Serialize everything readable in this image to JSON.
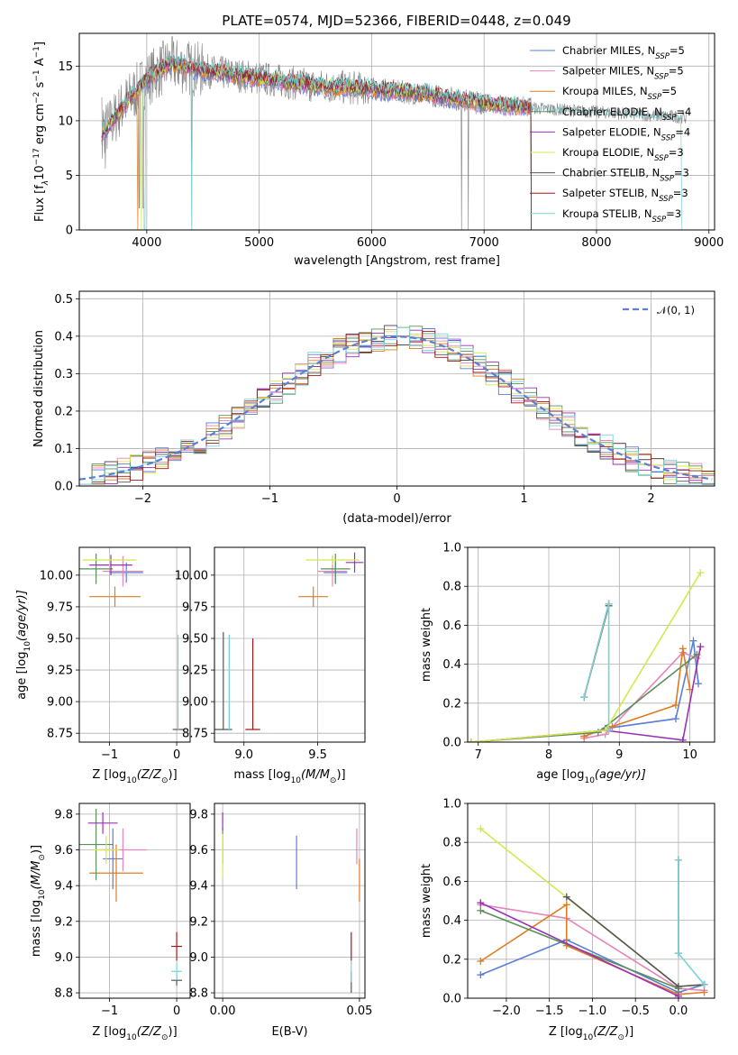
{
  "figure_title": "PLATE=0574, MJD=52366, FIBERID=0448, z=0.049",
  "models": [
    {
      "name": "Chabrier MILES, N",
      "sub": "SSP",
      "n": "=5",
      "color": "#5b7fd6"
    },
    {
      "name": "Salpeter MILES, N",
      "sub": "SSP",
      "n": "=5",
      "color": "#e884b8"
    },
    {
      "name": "Kroupa MILES, N",
      "sub": "SSP",
      "n": "=5",
      "color": "#e07b1f"
    },
    {
      "name": "Chabrier ELODIE, N",
      "sub": "SSP",
      "n": "=4",
      "color": "#5a8f5a"
    },
    {
      "name": "Salpeter ELODIE, N",
      "sub": "SSP",
      "n": "=4",
      "color": "#9b2fb8"
    },
    {
      "name": "Kroupa ELODIE, N",
      "sub": "SSP",
      "n": "=3",
      "color": "#d4e84a"
    },
    {
      "name": "Chabrier STELIB, N",
      "sub": "SSP",
      "n": "=3",
      "color": "#555555"
    },
    {
      "name": "Salpeter STELIB, N",
      "sub": "SSP",
      "n": "=3",
      "color": "#a01818"
    },
    {
      "name": "Kroupa STELIB, N",
      "sub": "SSP",
      "n": "=3",
      "color": "#7ad4d4"
    }
  ],
  "chart_data": [
    {
      "type": "line",
      "panel": "spectrum",
      "xlabel": "wavelength [Angstrom, rest frame]",
      "ylabel_main": "Flux [f",
      "ylabel_sub": "λ",
      "ylabel_rest": "10",
      "ylabel_exp1": "−17",
      "ylabel_mid": " erg cm",
      "ylabel_exp2": "−2",
      "ylabel_s": " s",
      "ylabel_exp3": "−1",
      "ylabel_end": " A",
      "ylabel_exp4": "−1",
      "ylabel_close": "]",
      "xlim": [
        3400,
        9050
      ],
      "ylim": [
        0,
        18
      ],
      "xticks": [
        4000,
        5000,
        6000,
        7000,
        8000,
        9000
      ],
      "yticks": [
        0,
        5,
        10,
        15
      ],
      "observed_color": "#808080",
      "observed_range": [
        3600,
        8800
      ],
      "model_range": [
        3600,
        7420
      ],
      "continuum_profile": {
        "x": [
          3600,
          3700,
          3800,
          4000,
          4200,
          4500,
          5000,
          5500,
          6000,
          6500,
          7000,
          7400,
          8000,
          8800
        ],
        "y": [
          8.8,
          10.0,
          11.5,
          13.8,
          15.2,
          14.6,
          13.9,
          13.2,
          12.9,
          12.4,
          11.6,
          11.2,
          10.8,
          10.3
        ]
      }
    },
    {
      "type": "histogram",
      "panel": "residuals",
      "xlabel": "(data-model)/error",
      "ylabel": "Normed distribution",
      "xlim": [
        -2.5,
        2.5
      ],
      "ylim": [
        0,
        0.52
      ],
      "xticks": [
        -2,
        -1,
        0,
        1,
        2
      ],
      "yticks": [
        0.0,
        0.1,
        0.2,
        0.3,
        0.4,
        0.5
      ],
      "bin_width": 0.1,
      "reference": {
        "label": "𝒩(0, 1)",
        "color": "#5b7fd6"
      }
    },
    {
      "type": "scatter",
      "panel": "age-vs-Z",
      "xlabel": "Z [log",
      "xlabel_sub": "10",
      "xlabel_rest": "(Z/Z",
      "xlabel_sun": "⊙",
      "xlabel_close": ")]",
      "ylabel": "age  [log",
      "ylabel_sub": "10",
      "ylabel_rest": "(age/yr)]",
      "xlim": [
        -1.45,
        0.2
      ],
      "ylim": [
        8.68,
        10.22
      ],
      "xticks": [
        -1,
        0
      ],
      "yticks": [
        8.75,
        9.0,
        9.25,
        9.5,
        9.75,
        10.0
      ],
      "points": [
        {
          "m": 0,
          "x": -0.75,
          "y": 10.02,
          "xerr": 0.25,
          "yerr": 0.08
        },
        {
          "m": 1,
          "x": -0.8,
          "y": 10.03,
          "xerr": 0.3,
          "yerr": 0.12
        },
        {
          "m": 2,
          "x": -0.92,
          "y": 9.83,
          "xerr": 0.38,
          "yerr": 0.08
        },
        {
          "m": 3,
          "x": -1.2,
          "y": 10.05,
          "xerr": 0.25,
          "yerr": 0.12
        },
        {
          "m": 4,
          "x": -0.98,
          "y": 10.08,
          "xerr": 0.32,
          "yerr": 0.08
        },
        {
          "m": 5,
          "x": -1.0,
          "y": 10.12,
          "xerr": 0.4,
          "yerr": 0.05
        },
        {
          "m": 6,
          "x": 0.02,
          "y": 8.78,
          "xerr": 0.08,
          "yerr": 0.0
        },
        {
          "m": 7,
          "x": 0.02,
          "y": 9.55,
          "xerr": 0.0,
          "yerr": 0.0
        },
        {
          "m": 8,
          "x": 0.02,
          "y": 9.15,
          "xerr": 0.0,
          "yerr": 0.38
        }
      ]
    },
    {
      "type": "scatter",
      "panel": "age-vs-mass",
      "xlabel": "mass [log",
      "xlabel_sub": "10",
      "xlabel_rest": "(M/M",
      "xlabel_sun": "⊙",
      "xlabel_close": ")]",
      "xlim": [
        8.8,
        9.82
      ],
      "ylim": [
        8.68,
        10.22
      ],
      "xticks": [
        9.0,
        9.5
      ],
      "yticks": [
        8.75,
        9.0,
        9.25,
        9.5,
        9.75,
        10.0
      ],
      "points": [
        {
          "m": 0,
          "x": 9.62,
          "y": 10.02,
          "xerr": 0.08,
          "yerr": 0.08
        },
        {
          "m": 1,
          "x": 9.6,
          "y": 10.03,
          "xerr": 0.1,
          "yerr": 0.12
        },
        {
          "m": 2,
          "x": 9.47,
          "y": 9.83,
          "xerr": 0.1,
          "yerr": 0.08
        },
        {
          "m": 3,
          "x": 9.62,
          "y": 10.05,
          "xerr": 0.1,
          "yerr": 0.12
        },
        {
          "m": 4,
          "x": 9.75,
          "y": 10.1,
          "xerr": 0.06,
          "yerr": 0.08
        },
        {
          "m": 5,
          "x": 9.6,
          "y": 10.12,
          "xerr": 0.18,
          "yerr": 0.04
        },
        {
          "m": 6,
          "x": 8.86,
          "y": 8.78,
          "xerr": 0.06,
          "yerr": 0.0
        },
        {
          "m": 7,
          "x": 9.06,
          "y": 8.78,
          "xerr": 0.05,
          "yerr": 0.0
        },
        {
          "m": 8,
          "x": 8.9,
          "y": 9.15,
          "xerr": 0.0,
          "yerr": 0.38
        }
      ],
      "stelib_vbars": [
        {
          "m": 6,
          "x": 8.86,
          "y0": 8.78,
          "y1": 9.55
        },
        {
          "m": 7,
          "x": 9.06,
          "y0": 8.78,
          "y1": 9.5
        },
        {
          "m": 8,
          "x": 8.9,
          "y0": 8.78,
          "y1": 9.52
        }
      ]
    },
    {
      "type": "line",
      "panel": "mass-weight-vs-age",
      "xlabel": "age  [log",
      "xlabel_sub": "10",
      "xlabel_rest": "(age/yr)]",
      "ylabel": "mass weight",
      "xlim": [
        6.85,
        10.35
      ],
      "ylim": [
        0,
        1.0
      ],
      "xticks": [
        7,
        8,
        9,
        10
      ],
      "yticks": [
        0.0,
        0.2,
        0.4,
        0.6,
        0.8,
        1.0
      ],
      "series": [
        {
          "m": 0,
          "x": [
            8.5,
            8.8,
            9.8,
            10.05,
            10.12
          ],
          "y": [
            0.03,
            0.07,
            0.12,
            0.52,
            0.3
          ]
        },
        {
          "m": 1,
          "x": [
            8.5,
            8.8,
            9.9,
            10.1
          ],
          "y": [
            0.02,
            0.04,
            0.46,
            0.43
          ]
        },
        {
          "m": 2,
          "x": [
            8.5,
            8.9,
            9.8,
            9.9,
            10.0
          ],
          "y": [
            0.03,
            0.08,
            0.19,
            0.48,
            0.27
          ]
        },
        {
          "m": 3,
          "x": [
            6.9,
            8.7,
            10.1
          ],
          "y": [
            0.0,
            0.05,
            0.45
          ]
        },
        {
          "m": 4,
          "x": [
            6.9,
            8.8,
            9.9,
            10.15
          ],
          "y": [
            0.0,
            0.06,
            0.01,
            0.49
          ]
        },
        {
          "m": 5,
          "x": [
            6.9,
            8.8,
            10.15
          ],
          "y": [
            0.0,
            0.06,
            0.87
          ]
        },
        {
          "m": 6,
          "x": [
            8.5,
            8.85
          ],
          "y": [
            0.23,
            0.7
          ]
        },
        {
          "m": 7,
          "x": [
            8.5,
            8.85
          ],
          "y": [
            0.23,
            0.71
          ]
        },
        {
          "m": 8,
          "x": [
            8.5,
            8.85,
            8.85
          ],
          "y": [
            0.23,
            0.71,
            0.06
          ]
        }
      ]
    },
    {
      "type": "scatter",
      "panel": "mass-vs-Z",
      "xlabel": "Z [log",
      "xlabel_sub": "10",
      "xlabel_rest": "(Z/Z",
      "xlabel_sun": "⊙",
      "xlabel_close": ")]",
      "ylabel": "mass [log",
      "ylabel_sub": "10",
      "ylabel_rest": "(M/M",
      "ylabel_sun": "⊙",
      "ylabel_close": ")]",
      "xlim": [
        -1.45,
        0.2
      ],
      "ylim": [
        8.77,
        9.86
      ],
      "xticks": [
        -1,
        0
      ],
      "yticks": [
        8.8,
        9.0,
        9.2,
        9.4,
        9.6,
        9.8
      ],
      "points": [
        {
          "m": 0,
          "x": -0.95,
          "y": 9.55,
          "xerr": 0.15,
          "yerr": 0.17
        },
        {
          "m": 1,
          "x": -0.8,
          "y": 9.6,
          "xerr": 0.35,
          "yerr": 0.12
        },
        {
          "m": 2,
          "x": -0.9,
          "y": 9.47,
          "xerr": 0.4,
          "yerr": 0.16
        },
        {
          "m": 3,
          "x": -1.2,
          "y": 9.63,
          "xerr": 0.25,
          "yerr": 0.2
        },
        {
          "m": 4,
          "x": -1.1,
          "y": 9.75,
          "xerr": 0.22,
          "yerr": 0.06
        },
        {
          "m": 5,
          "x": -1.05,
          "y": 9.6,
          "xerr": 0.2,
          "yerr": 0.08
        },
        {
          "m": 6,
          "x": 0.0,
          "y": 8.87,
          "xerr": 0.08,
          "yerr": 0.03
        },
        {
          "m": 7,
          "x": 0.0,
          "y": 9.06,
          "xerr": 0.08,
          "yerr": 0.08
        },
        {
          "m": 8,
          "x": 0.0,
          "y": 8.92,
          "xerr": 0.08,
          "yerr": 0.05
        }
      ]
    },
    {
      "type": "scatter",
      "panel": "mass-vs-ebv",
      "xlabel": "E(B-V)",
      "xlim": [
        -0.003,
        0.052
      ],
      "ylim": [
        8.77,
        9.86
      ],
      "xticks": [
        0.0,
        0.05
      ],
      "yticks": [
        8.8,
        9.0,
        9.2,
        9.4,
        9.6,
        9.8
      ],
      "points": [
        {
          "m": 0,
          "x": 0.027,
          "y": 9.53,
          "xerr": 0.0,
          "yerr": 0.15
        },
        {
          "m": 1,
          "x": 0.049,
          "y": 9.62,
          "xerr": 0.0,
          "yerr": 0.1
        },
        {
          "m": 2,
          "x": 0.05,
          "y": 9.43,
          "xerr": 0.0,
          "yerr": 0.12
        },
        {
          "m": 3,
          "x": 0.0,
          "y": 9.62,
          "xerr": 0.0,
          "yerr": 0.1
        },
        {
          "m": 4,
          "x": 0.0,
          "y": 9.76,
          "xerr": 0.0,
          "yerr": 0.05
        },
        {
          "m": 5,
          "x": 0.0,
          "y": 9.57,
          "xerr": 0.0,
          "yerr": 0.12
        },
        {
          "m": 6,
          "x": 0.047,
          "y": 8.86,
          "xerr": 0.0,
          "yerr": 0.06
        },
        {
          "m": 7,
          "x": 0.047,
          "y": 9.06,
          "xerr": 0.0,
          "yerr": 0.08
        },
        {
          "m": 8,
          "x": 0.047,
          "y": 8.92,
          "xerr": 0.0,
          "yerr": 0.06
        }
      ]
    },
    {
      "type": "line",
      "panel": "mass-weight-vs-Z",
      "xlabel": "Z [log",
      "xlabel_sub": "10",
      "xlabel_rest": "(Z/Z",
      "xlabel_sun": "⊙",
      "xlabel_close": ")]",
      "ylabel": "mass weight",
      "xlim": [
        -2.45,
        0.42
      ],
      "ylim": [
        0,
        1.0
      ],
      "xticks": [
        -2.0,
        -1.5,
        -1.0,
        -0.5,
        0.0
      ],
      "xtick_labels": [
        "−2.0",
        "−1.5",
        "−1.0",
        "−0.5",
        "0.0"
      ],
      "yticks": [
        0.0,
        0.2,
        0.4,
        0.6,
        0.8,
        1.0
      ],
      "series": [
        {
          "m": 0,
          "x": [
            -2.3,
            -1.3,
            0.0,
            0.3
          ],
          "y": [
            0.12,
            0.3,
            0.03,
            0.07
          ]
        },
        {
          "m": 1,
          "x": [
            -2.3,
            -1.3,
            0.0,
            0.3
          ],
          "y": [
            0.48,
            0.41,
            0.05,
            0.04
          ]
        },
        {
          "m": 2,
          "x": [
            -2.3,
            -1.3,
            -1.3,
            0.0,
            0.3
          ],
          "y": [
            0.19,
            0.48,
            0.27,
            0.02,
            0.03
          ]
        },
        {
          "m": 3,
          "x": [
            -2.3,
            0.0
          ],
          "y": [
            0.45,
            0.05
          ]
        },
        {
          "m": 4,
          "x": [
            -2.3,
            0.0
          ],
          "y": [
            0.49,
            0.01
          ]
        },
        {
          "m": 5,
          "x": [
            -2.3,
            0.0
          ],
          "y": [
            0.87,
            0.06
          ]
        },
        {
          "m": 6,
          "x": [
            -1.3,
            0.0,
            0.3
          ],
          "y": [
            0.52,
            0.06,
            0.07
          ]
        },
        {
          "m": 7,
          "x": [
            0.0,
            0.0
          ],
          "y": [
            0.23,
            0.71
          ]
        },
        {
          "m": 8,
          "x": [
            0.0,
            0.0,
            0.3
          ],
          "y": [
            0.71,
            0.23,
            0.07
          ]
        }
      ]
    }
  ]
}
